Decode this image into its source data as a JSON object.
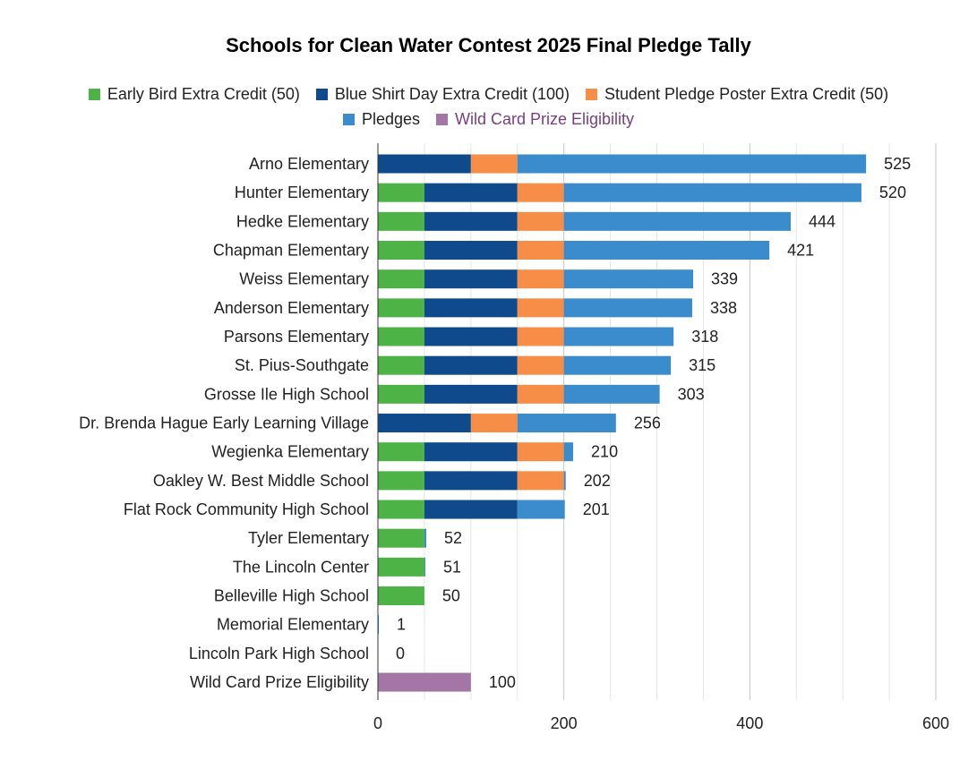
{
  "chart_data": {
    "type": "bar",
    "orientation": "horizontal",
    "stacked": true,
    "title": "Schools for Clean Water Contest 2025 Final Pledge Tally",
    "xlabel": "",
    "ylabel": "",
    "xlim": [
      0,
      600
    ],
    "x_ticks": [
      "0",
      "200",
      "400",
      "600"
    ],
    "grid": true,
    "legend_position": "top",
    "categories": [
      "Arno Elementary",
      "Hunter Elementary",
      "Hedke Elementary",
      "Chapman Elementary",
      "Weiss Elementary",
      "Anderson Elementary",
      "Parsons Elementary",
      "St. Pius-Southgate",
      "Grosse Ile High School",
      "Dr. Brenda Hague Early Learning Village",
      "Wegienka Elementary",
      "Oakley W. Best Middle School",
      "Flat Rock Community High School",
      "Tyler Elementary",
      "The Lincoln Center",
      "Belleville High School",
      "Memorial Elementary",
      "Lincoln Park High School",
      "Wild Card Prize Eligibility"
    ],
    "series": [
      {
        "name": "Early Bird Extra Credit (50)",
        "color": "#4db346",
        "values": [
          0,
          50,
          50,
          50,
          50,
          50,
          50,
          50,
          50,
          0,
          50,
          50,
          50,
          50,
          50,
          50,
          0,
          0,
          0
        ]
      },
      {
        "name": "Blue Shirt Day Extra Credit (100)",
        "color": "#0e4a8c",
        "values": [
          100,
          100,
          100,
          100,
          100,
          100,
          100,
          100,
          100,
          100,
          100,
          100,
          100,
          0,
          0,
          0,
          0,
          0,
          0
        ]
      },
      {
        "name": "Student Pledge Poster Extra Credit (50)",
        "color": "#f68e47",
        "values": [
          50,
          50,
          50,
          50,
          50,
          50,
          50,
          50,
          50,
          50,
          50,
          50,
          0,
          0,
          0,
          0,
          0,
          0,
          0
        ]
      },
      {
        "name": "Pledges",
        "color": "#3a8ccc",
        "values": [
          375,
          320,
          244,
          221,
          139,
          138,
          118,
          115,
          103,
          106,
          10,
          2,
          51,
          2,
          1,
          0,
          1,
          0,
          0
        ]
      },
      {
        "name": "Wild Card Prize Eligibility",
        "color": "#a476a6",
        "values": [
          0,
          0,
          0,
          0,
          0,
          0,
          0,
          0,
          0,
          0,
          0,
          0,
          0,
          0,
          0,
          0,
          0,
          0,
          100
        ]
      }
    ],
    "totals": [
      "525",
      "520",
      "444",
      "421",
      "339",
      "338",
      "318",
      "315",
      "303",
      "256",
      "210",
      "202",
      "201",
      "52",
      "51",
      "50",
      "1",
      "0",
      "100"
    ],
    "legend_text_colors": [
      "#222222",
      "#222222",
      "#222222",
      "#222222",
      "#7a3e80"
    ]
  }
}
